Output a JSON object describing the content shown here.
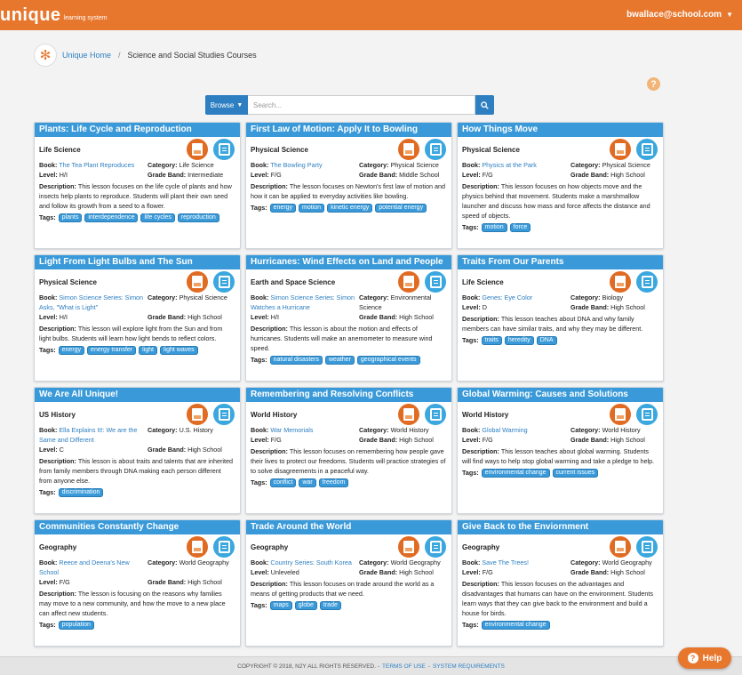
{
  "header": {
    "logo_word": "unique",
    "logo_sub": "learning system",
    "user_email": "bwallace@school.com"
  },
  "breadcrumb": {
    "home": "Unique Home",
    "current": "Science and Social Studies Courses"
  },
  "search": {
    "browse_label": "Browse",
    "placeholder": "Search..."
  },
  "labels": {
    "book": "Book:",
    "category": "Category:",
    "level": "Level:",
    "grade_band": "Grade Band:",
    "description": "Description:",
    "tags": "Tags:"
  },
  "cards": [
    {
      "title": "Plants: Life Cycle and Reproduction",
      "subject": "Life Science",
      "book": "The Tea Plant Reproduces",
      "category": "Life Science",
      "level": "H/I",
      "grade_band": "Intermediate",
      "description": "This lesson focuses on the life cycle of plants and how insects help plants to reproduce. Students will plant their own seed and follow its growth from a seed to a flower.",
      "tags": [
        "plants",
        "interdependence",
        "life cycles",
        "reproduction"
      ]
    },
    {
      "title": "First Law of Motion: Apply It to Bowling",
      "subject": "Physical Science",
      "book": "The Bowling Party",
      "category": "Physical Science",
      "level": "F/G",
      "grade_band": "Middle School",
      "description": "The lesson focuses on Newton's first law of motion and how it can be applied to everyday activities like bowling.",
      "tags": [
        "energy",
        "motion",
        "kinetic energy",
        "potential energy"
      ]
    },
    {
      "title": "How Things Move",
      "subject": "Physical Science",
      "book": "Physics at the Park",
      "category": "Physical Science",
      "level": "F/G",
      "grade_band": "High School",
      "description": "This lesson focuses on how objects move and the physics behind that movement. Students make a marshmallow launcher and discuss how mass and force affects the distance and speed of objects.",
      "tags": [
        "motion",
        "force"
      ]
    },
    {
      "title": "Light From Light Bulbs and The Sun",
      "subject": "Physical Science",
      "book": "Simon Science Series: Simon Asks, \"What is Light\"",
      "category": "Physical Science",
      "level": "H/I",
      "grade_band": "High School",
      "description": "This lesson will explore light from the Sun and from light bulbs. Students will learn how light bends to reflect colors.",
      "tags": [
        "energy",
        "energy transfer",
        "light",
        "light waves"
      ]
    },
    {
      "title": "Hurricanes: Wind Effects on Land and People",
      "subject": "Earth and Space Science",
      "book": "Simon Science Series: Simon Watches a Hurricane",
      "category": "Environmental Science",
      "level": "H/I",
      "grade_band": "High School",
      "description": "This lesson is about the motion and effects of hurricanes. Students will make an anemometer to measure wind speed.",
      "tags": [
        "natural disasters",
        "weather",
        "geographical events"
      ]
    },
    {
      "title": "Traits From Our Parents",
      "subject": "Life Science",
      "book": "Genes: Eye Color",
      "category": "Biology",
      "level": "D",
      "grade_band": "High School",
      "description": "This lesson teaches about DNA and why family members can have similar traits, and why they may be different.",
      "tags": [
        "traits",
        "heredity",
        "DNA"
      ]
    },
    {
      "title": "We Are All Unique!",
      "subject": "US History",
      "book": "Ella Explains It!: We are the Same and Different",
      "category": "U.S. History",
      "level": "C",
      "grade_band": "High School",
      "description": "This lesson is about traits and talents that are inherited from family members through DNA making each person different from anyone else.",
      "tags": [
        "discrimination"
      ]
    },
    {
      "title": "Remembering and Resolving Conflicts",
      "subject": "World History",
      "book": "War Memorials",
      "category": "World History",
      "level": "F/G",
      "grade_band": "High School",
      "description": "This lesson focuses on remembering how people gave their lives to protect our freedoms. Students will practice strategies of to solve disagreements in a peaceful way.",
      "tags": [
        "conflict",
        "war",
        "freedom"
      ]
    },
    {
      "title": "Global Warming: Causes and Solutions",
      "subject": "World History",
      "book": "Global Warming",
      "category": "World History",
      "level": "F/G",
      "grade_band": "High School",
      "description": "This lesson teaches about global warming. Students will find ways to help stop global warming and take a pledge to help.",
      "tags": [
        "environmental change",
        "current issues"
      ]
    },
    {
      "title": "Communities Constantly Change",
      "subject": "Geography",
      "book": "Reece and Deena's New School",
      "category": "World Geography",
      "level": "F/G",
      "grade_band": "High School",
      "description": "The lesson is focusing on the reasons why families may move to a new community, and how the move to a new place can affect new students.",
      "tags": [
        "population"
      ]
    },
    {
      "title": "Trade Around the World",
      "subject": "Geography",
      "book": "Country Series: South Korea",
      "category": "World Geography",
      "level": "Unleveled",
      "grade_band": "High School",
      "description": "This lesson focuses on trade around the world as a means of getting products that we need.",
      "tags": [
        "maps",
        "globe",
        "trade"
      ]
    },
    {
      "title": "Give Back to the Enviornment",
      "subject": "Geography",
      "book": "Save The Trees!",
      "category": "World Geography",
      "level": "F/G",
      "grade_band": "High School",
      "description": "This lesson focuses on the advantages and disadvantages that humans can have on the environment. Students learn ways that they can give back to the environment and build a house for birds.",
      "tags": [
        "environmental change"
      ]
    }
  ],
  "footer": {
    "copyright": "COPYRIGHT © 2018, N2Y ALL RIGHTS RESERVED. -",
    "terms": "TERMS OF USE",
    "sep": "-",
    "requirements": "SYSTEM REQUIREMENTS"
  },
  "help": {
    "label": "Help",
    "icon_char": "?"
  },
  "colors": {
    "brand_orange": "#e8772e",
    "primary_blue": "#3a9ad9",
    "link_blue": "#2d7fc1"
  }
}
